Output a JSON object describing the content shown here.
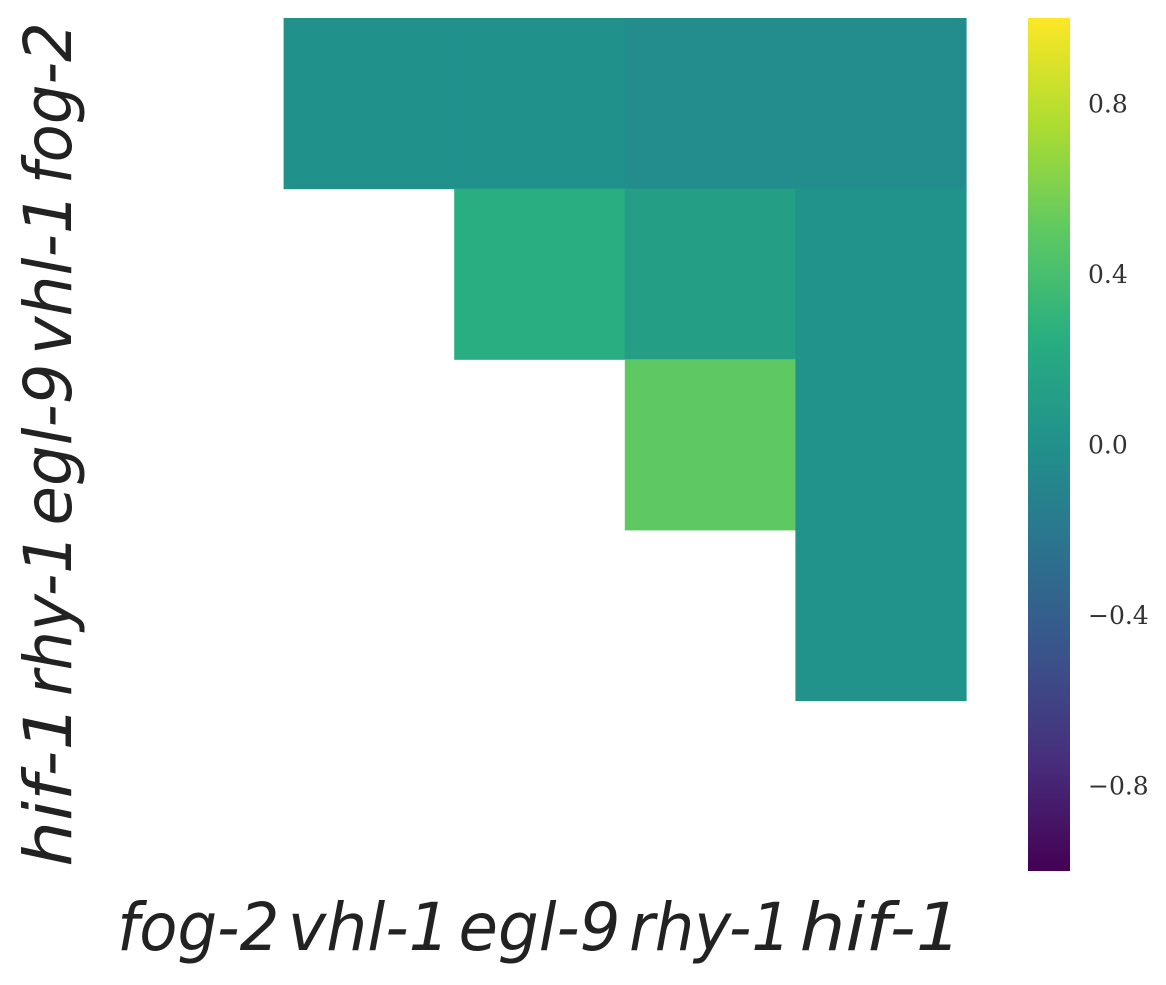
{
  "chart_data": {
    "type": "heatmap",
    "title": "",
    "xlabel": "",
    "ylabel": "",
    "x_categories": [
      "fog-2",
      "vhl-1",
      "egl-9",
      "rhy-1",
      "hif-1"
    ],
    "y_categories": [
      "fog-2",
      "vhl-1",
      "egl-9",
      "rhy-1",
      "hif-1"
    ],
    "colormap": "viridis",
    "vmin": -1.0,
    "vmax": 1.0,
    "cells": [
      {
        "row": 0,
        "col": 1,
        "value": 0.0
      },
      {
        "row": 0,
        "col": 2,
        "value": 0.0
      },
      {
        "row": 0,
        "col": 3,
        "value": -0.03
      },
      {
        "row": 0,
        "col": 4,
        "value": -0.03
      },
      {
        "row": 1,
        "col": 2,
        "value": 0.25
      },
      {
        "row": 1,
        "col": 3,
        "value": 0.12
      },
      {
        "row": 1,
        "col": 4,
        "value": 0.02
      },
      {
        "row": 2,
        "col": 3,
        "value": 0.5
      },
      {
        "row": 2,
        "col": 4,
        "value": 0.02
      },
      {
        "row": 3,
        "col": 4,
        "value": 0.02
      }
    ],
    "colorbar_ticks": [
      {
        "value": 0.8,
        "label": "0.8"
      },
      {
        "value": 0.4,
        "label": "0.4"
      },
      {
        "value": 0.0,
        "label": "0.0"
      },
      {
        "value": -0.4,
        "label": "−0.4"
      },
      {
        "value": -0.8,
        "label": "−0.8"
      }
    ]
  }
}
